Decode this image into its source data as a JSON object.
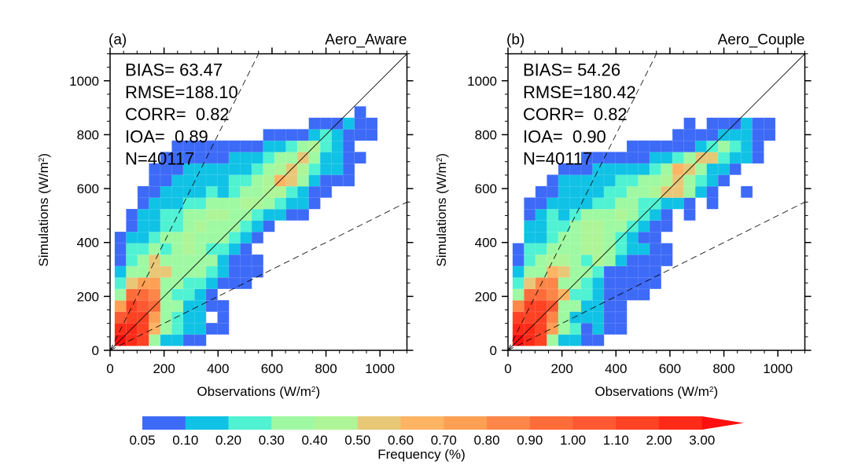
{
  "chart_data": [
    {
      "type": "heatmap",
      "panel_label": "(a)",
      "title": "Aero_Aware",
      "xlabel": "Observations (W/m",
      "ylabel": "Simulations (W/m",
      "unit_superscript": "2",
      "xlim": [
        0,
        1100
      ],
      "ylim": [
        0,
        1100
      ],
      "xticks": [
        0,
        200,
        400,
        600,
        800,
        1000
      ],
      "yticks": [
        0,
        200,
        400,
        600,
        800,
        1000
      ],
      "minor_tick_step": 50,
      "bin_width": 42.3,
      "bin_origin": 17,
      "reference_lines": [
        {
          "name": "1:1 line",
          "slope": 1,
          "style": "solid"
        },
        {
          "name": "2:1 line",
          "slope": 2,
          "style": "dashed"
        },
        {
          "name": "1:2 line",
          "slope": 0.5,
          "style": "dashed"
        }
      ],
      "stats": [
        {
          "label": "BIAS=",
          "value": " 63.47"
        },
        {
          "label": "RMSE=",
          "value": "188.10"
        },
        {
          "label": "CORR=",
          "value": "  0.82"
        },
        {
          "label": "IOA=",
          "value": "  0.89"
        },
        {
          "label": "N=",
          "value": "40117"
        }
      ],
      "grid_rows_bottom_up": [
        [
          13,
          12,
          11,
          3,
          1,
          1,
          0,
          0
        ],
        [
          12,
          12,
          11,
          6,
          3,
          2,
          1,
          1,
          0,
          0
        ],
        [
          10,
          11,
          11,
          7,
          3,
          2,
          1,
          1,
          -1,
          0
        ],
        [
          7,
          11,
          10,
          9,
          3,
          3,
          1,
          1,
          0,
          0
        ],
        [
          3,
          9,
          9,
          8,
          3,
          2,
          2,
          1,
          0
        ],
        [
          2,
          5,
          7,
          7,
          3,
          3,
          2,
          2,
          1,
          0,
          0,
          0
        ],
        [
          1,
          3,
          3,
          5,
          5,
          3,
          3,
          3,
          2,
          1,
          0,
          0,
          0
        ],
        [
          0,
          2,
          3,
          5,
          3,
          3,
          3,
          3,
          3,
          1,
          0,
          0,
          0
        ],
        [
          0,
          2,
          2,
          3,
          2,
          3,
          4,
          3,
          2,
          2,
          1,
          0
        ],
        [
          0,
          1,
          1,
          2,
          3,
          3,
          4,
          3,
          3,
          3,
          2,
          1,
          0
        ],
        [
          -1,
          0,
          1,
          1,
          2,
          2,
          3,
          4,
          3,
          3,
          3,
          2,
          1,
          0
        ],
        [
          -1,
          0,
          1,
          1,
          2,
          2,
          3,
          3,
          4,
          4,
          3,
          3,
          2,
          1,
          1,
          0,
          0
        ],
        [
          -1,
          -1,
          0,
          1,
          1,
          1,
          2,
          2,
          3,
          3,
          3,
          4,
          4,
          3,
          2,
          1,
          1,
          0
        ],
        [
          -1,
          -1,
          0,
          0,
          1,
          1,
          1,
          1,
          2,
          1,
          2,
          3,
          3,
          4,
          4,
          2,
          1,
          0,
          0
        ],
        [
          -1,
          -1,
          -1,
          0,
          0,
          1,
          1,
          1,
          1,
          1,
          2,
          2,
          3,
          4,
          6,
          5,
          3,
          1,
          0,
          0,
          0
        ],
        [
          -1,
          -1,
          -1,
          0,
          0,
          0,
          1,
          1,
          1,
          1,
          1,
          1,
          2,
          3,
          4,
          5,
          4,
          2,
          1,
          1,
          0
        ],
        [
          -1,
          -1,
          -1,
          -1,
          0,
          0,
          0,
          0,
          0,
          0,
          1,
          1,
          1,
          2,
          3,
          3,
          5,
          3,
          1,
          1,
          0,
          0
        ],
        [
          -1,
          -1,
          -1,
          -1,
          -1,
          0,
          0,
          0,
          0,
          0,
          0,
          0,
          0,
          1,
          1,
          2,
          3,
          4,
          2,
          1,
          0
        ],
        [
          -1,
          -1,
          -1,
          -1,
          -1,
          -1,
          -1,
          -1,
          -1,
          -1,
          -1,
          -1,
          -1,
          0,
          0,
          0,
          0,
          1,
          2,
          1,
          0,
          0,
          0
        ],
        [
          -1,
          -1,
          -1,
          -1,
          -1,
          -1,
          -1,
          -1,
          -1,
          -1,
          -1,
          -1,
          -1,
          -1,
          -1,
          -1,
          -1,
          0,
          0,
          0,
          1,
          0,
          0
        ],
        [
          -1,
          -1,
          -1,
          -1,
          -1,
          -1,
          -1,
          -1,
          -1,
          -1,
          -1,
          -1,
          -1,
          -1,
          -1,
          -1,
          -1,
          -1,
          -1,
          -1,
          -1,
          0
        ]
      ]
    },
    {
      "type": "heatmap",
      "panel_label": "(b)",
      "title": "Aero_Couple",
      "xlabel": "Observations (W/m",
      "ylabel": "Simulations (W/m",
      "unit_superscript": "2",
      "xlim": [
        0,
        1100
      ],
      "ylim": [
        0,
        1100
      ],
      "xticks": [
        0,
        200,
        400,
        600,
        800,
        1000
      ],
      "yticks": [
        0,
        200,
        400,
        600,
        800,
        1000
      ],
      "minor_tick_step": 50,
      "bin_width": 42.3,
      "bin_origin": 17,
      "reference_lines": [
        {
          "name": "1:1 line",
          "slope": 1,
          "style": "solid"
        },
        {
          "name": "2:1 line",
          "slope": 2,
          "style": "dashed"
        },
        {
          "name": "1:2 line",
          "slope": 0.5,
          "style": "dashed"
        }
      ],
      "stats": [
        {
          "label": "BIAS=",
          "value": " 54.26"
        },
        {
          "label": "RMSE=",
          "value": "180.42"
        },
        {
          "label": "CORR=",
          "value": "  0.82"
        },
        {
          "label": "IOA=",
          "value": "  0.90"
        },
        {
          "label": "N=",
          "value": "40117"
        }
      ],
      "grid_rows_bottom_up": [
        [
          13,
          12,
          11,
          3,
          1,
          1,
          0,
          0
        ],
        [
          12,
          12,
          11,
          7,
          3,
          2,
          0,
          1,
          0,
          0
        ],
        [
          11,
          11,
          11,
          8,
          3,
          1,
          1,
          1,
          0,
          0
        ],
        [
          8,
          11,
          11,
          10,
          3,
          3,
          1,
          1,
          0,
          0,
          -1
        ],
        [
          3,
          9,
          9,
          8,
          6,
          2,
          2,
          1,
          0,
          0,
          0,
          0
        ],
        [
          2,
          5,
          8,
          8,
          3,
          3,
          2,
          1,
          0,
          0,
          0,
          0,
          0
        ],
        [
          1,
          3,
          3,
          6,
          5,
          3,
          3,
          2,
          0,
          0,
          0,
          0,
          0
        ],
        [
          0,
          2,
          3,
          4,
          4,
          3,
          2,
          4,
          3,
          1,
          0,
          0,
          0,
          0
        ],
        [
          0,
          2,
          2,
          3,
          3,
          3,
          4,
          4,
          3,
          2,
          1,
          1,
          0,
          0
        ],
        [
          -1,
          1,
          1,
          2,
          3,
          3,
          4,
          4,
          3,
          2,
          1,
          0,
          0
        ],
        [
          -1,
          1,
          1,
          2,
          2,
          3,
          4,
          4,
          3,
          3,
          2,
          1,
          0,
          0
        ],
        [
          -1,
          0,
          1,
          2,
          1,
          2,
          3,
          3,
          3,
          4,
          3,
          2,
          1,
          0,
          -1,
          0
        ],
        [
          -1,
          0,
          0,
          1,
          1,
          1,
          1,
          2,
          2,
          3,
          3,
          2,
          2,
          1,
          1,
          0,
          -1,
          0
        ],
        [
          -1,
          -1,
          0,
          0,
          1,
          1,
          1,
          1,
          2,
          2,
          3,
          3,
          4,
          5,
          5,
          3,
          1,
          0,
          -1,
          -1,
          0
        ],
        [
          -1,
          -1,
          -1,
          0,
          1,
          1,
          1,
          1,
          1,
          2,
          2,
          3,
          3,
          4,
          5,
          3,
          2,
          1,
          0,
          -1,
          -1
        ],
        [
          -1,
          -1,
          -1,
          -1,
          0,
          0,
          0,
          1,
          1,
          1,
          1,
          1,
          2,
          3,
          6,
          5,
          3,
          1,
          1,
          0,
          -1
        ],
        [
          -1,
          -1,
          -1,
          -1,
          -1,
          -1,
          0,
          0,
          0,
          0,
          0,
          0,
          1,
          1,
          2,
          3,
          5,
          5,
          2,
          1,
          1,
          0
        ],
        [
          -1,
          -1,
          -1,
          -1,
          -1,
          -1,
          -1,
          -1,
          -1,
          -1,
          0,
          0,
          0,
          0,
          0,
          0,
          1,
          2,
          3,
          2,
          1,
          0
        ],
        [
          -1,
          -1,
          -1,
          -1,
          -1,
          -1,
          -1,
          -1,
          -1,
          -1,
          -1,
          -1,
          -1,
          -1,
          0,
          0,
          0,
          0,
          1,
          1,
          1,
          0,
          0
        ],
        [
          -1,
          -1,
          -1,
          -1,
          -1,
          -1,
          -1,
          -1,
          -1,
          -1,
          -1,
          -1,
          -1,
          -1,
          -1,
          0,
          -1,
          0,
          0,
          0,
          1,
          0,
          0
        ]
      ]
    }
  ],
  "colorbar": {
    "title": "Frequency (%)",
    "labels": [
      "0.05",
      "0.10",
      "0.20",
      "0.30",
      "0.40",
      "0.50",
      "0.60",
      "0.70",
      "0.80",
      "0.90",
      "1.00",
      "1.10",
      "2.00",
      "3.00"
    ],
    "colors": [
      "#3d6af7",
      "#10c2e5",
      "#4ff2d2",
      "#9ef9a2",
      "#aef597",
      "#e8c877",
      "#feb463",
      "#fea054",
      "#fd8648",
      "#fe6c3a",
      "#fe5932",
      "#fe4224",
      "#ff2b18",
      "#ff0f0f"
    ],
    "end_arrow": "right"
  }
}
